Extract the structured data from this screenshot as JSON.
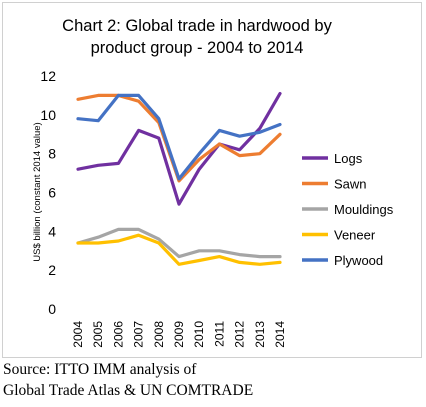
{
  "chart_data": {
    "type": "line",
    "title_line1": "Chart 2: Global trade in hardwood by",
    "title_line2": "product group - 2004 to 2014",
    "ylabel": "US$ billion (constant 2014 value)",
    "xlabel": "",
    "ylim": [
      0,
      12
    ],
    "yticks": [
      "0",
      "2",
      "4",
      "6",
      "8",
      "10",
      "12"
    ],
    "x": [
      "2004",
      "2005",
      "2006",
      "2007",
      "2008",
      "2009",
      "2010",
      "2011",
      "2012",
      "2013",
      "2014"
    ],
    "grid": false,
    "legend_position": "right",
    "series": [
      {
        "name": "Logs",
        "color": "#7030a0",
        "values": [
          7.2,
          7.4,
          7.5,
          9.2,
          8.8,
          5.4,
          7.2,
          8.5,
          8.2,
          9.3,
          11.1
        ]
      },
      {
        "name": "Sawn",
        "color": "#ed7d31",
        "values": [
          10.8,
          11.0,
          11.0,
          10.7,
          9.6,
          6.6,
          7.7,
          8.5,
          7.9,
          8.0,
          9.0
        ]
      },
      {
        "name": "Mouldings",
        "color": "#a5a5a5",
        "values": [
          3.4,
          3.7,
          4.1,
          4.1,
          3.6,
          2.7,
          3.0,
          3.0,
          2.8,
          2.7,
          2.7
        ]
      },
      {
        "name": "Veneer",
        "color": "#ffc000",
        "values": [
          3.4,
          3.4,
          3.5,
          3.8,
          3.4,
          2.3,
          2.5,
          2.7,
          2.4,
          2.3,
          2.4
        ]
      },
      {
        "name": "Plywood",
        "color": "#4472c4",
        "values": [
          9.8,
          9.7,
          11.0,
          11.0,
          9.8,
          6.7,
          8.0,
          9.2,
          8.9,
          9.1,
          9.5
        ]
      }
    ]
  },
  "source": {
    "line1": "Source: ITTO IMM analysis of",
    "line2": "Global Trade Atlas & UN COMTRADE"
  }
}
